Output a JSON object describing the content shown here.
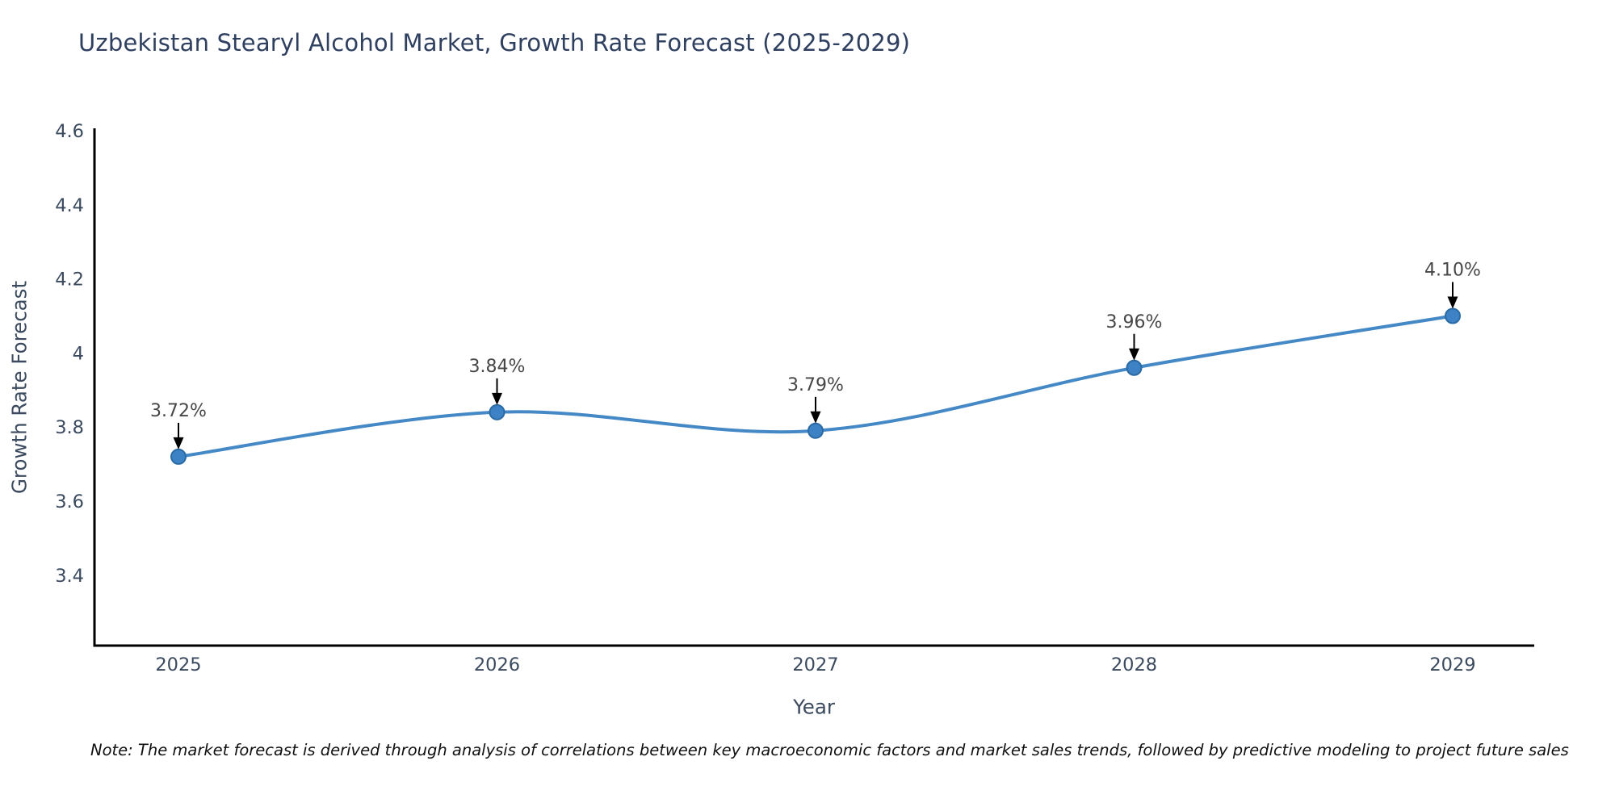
{
  "chart": {
    "title": "Uzbekistan Stearyl Alcohol Market, Growth Rate Forecast (2025-2029)",
    "ylabel": "Growth Rate Forecast",
    "xlabel": "Year",
    "note": "Note: The market forecast is derived through analysis of correlations between key macroeconomic factors and market sales trends, followed by predictive modeling to project future sales"
  },
  "chart_data": {
    "type": "line",
    "title": "Uzbekistan Stearyl Alcohol Market, Growth Rate Forecast (2025-2029)",
    "xlabel": "Year",
    "ylabel": "Growth Rate Forecast",
    "x": [
      2025,
      2026,
      2027,
      2028,
      2029
    ],
    "series": [
      {
        "name": "Growth Rate Forecast",
        "values": [
          3.72,
          3.84,
          3.79,
          3.96,
          4.1
        ],
        "point_labels": [
          "3.72%",
          "3.84%",
          "3.79%",
          "3.96%",
          "4.10%"
        ]
      }
    ],
    "xtick_labels": [
      "2025",
      "2026",
      "2027",
      "2028",
      "2029"
    ],
    "yticks": [
      3.4,
      3.6,
      3.8,
      4,
      4.2,
      4.4,
      4.6
    ],
    "ytick_labels": [
      "3.4",
      "3.6",
      "3.8",
      "4",
      "4.2",
      "4.4",
      "4.6"
    ],
    "ylim": [
      3.2,
      4.6
    ],
    "grid": false,
    "legend": null,
    "curve": "smooth-spline",
    "annotation_style": "black-down-arrow",
    "colors": {
      "line": "#4489c6",
      "marker_fill": "#3c82c4",
      "marker_edge": "#2a6aa5",
      "axis": "#000000",
      "tick_text": "#3b4a5e",
      "title_text": "#2e3f5f",
      "point_label_text": "#474747",
      "arrow": "#000000",
      "background": "#ffffff"
    }
  }
}
